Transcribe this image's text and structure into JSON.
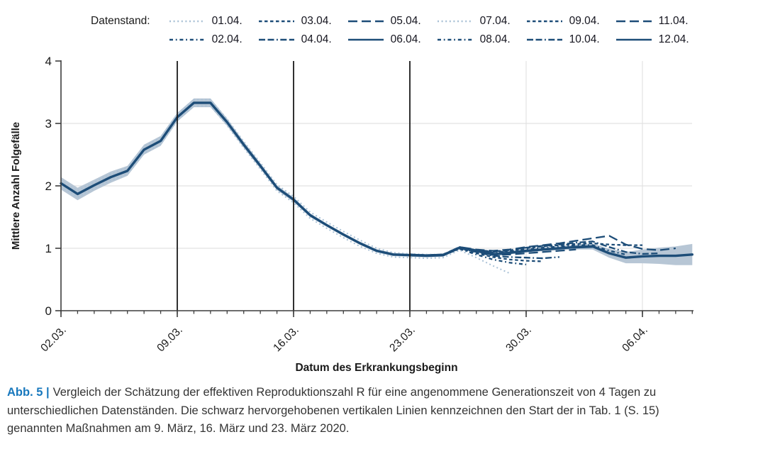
{
  "legend": {
    "title": "Datenstand:",
    "entries": [
      {
        "label": "01.04.",
        "dash": "dotted",
        "tone": "light"
      },
      {
        "label": "02.04.",
        "dash": "dashdot",
        "tone": "dark"
      },
      {
        "label": "03.04.",
        "dash": "shortdash",
        "tone": "dark"
      },
      {
        "label": "04.04.",
        "dash": "dashdashdot",
        "tone": "dark"
      },
      {
        "label": "05.04.",
        "dash": "longdash",
        "tone": "dark"
      },
      {
        "label": "06.04.",
        "dash": "solid",
        "tone": "dark"
      },
      {
        "label": "07.04.",
        "dash": "dotted",
        "tone": "light"
      },
      {
        "label": "08.04.",
        "dash": "dashdot",
        "tone": "dark"
      },
      {
        "label": "09.04.",
        "dash": "shortdash",
        "tone": "dark"
      },
      {
        "label": "10.04.",
        "dash": "dashdashdot",
        "tone": "dark"
      },
      {
        "label": "11.04.",
        "dash": "longdash",
        "tone": "dark"
      },
      {
        "label": "12.04.",
        "dash": "solid",
        "tone": "dark"
      }
    ]
  },
  "palette": {
    "line_dark": "#1d4d78",
    "line_light": "#a9c1d6",
    "band": "#b7c6d5",
    "grid": "#e2e2e2",
    "axis": "#3d3d3d",
    "vline": "#1a1a1a",
    "text": "#1a1a1a",
    "caption_accent": "#1878bd",
    "caption_text": "#343434"
  },
  "chart_data": {
    "type": "line",
    "title": "",
    "xlabel": "Datum des Erkrankungsbeginn",
    "ylabel": "Mittlere Anzahl Folgefälle",
    "ylim": [
      0,
      4
    ],
    "y_ticks": [
      0,
      1,
      2,
      3,
      4
    ],
    "x_dates": [
      "02.03.",
      "03.03.",
      "04.03.",
      "05.03.",
      "06.03.",
      "07.03.",
      "08.03.",
      "09.03.",
      "10.03.",
      "11.03.",
      "12.03.",
      "13.03.",
      "14.03.",
      "15.03.",
      "16.03.",
      "17.03.",
      "18.03.",
      "19.03.",
      "20.03.",
      "21.03.",
      "22.03.",
      "23.03.",
      "24.03.",
      "25.03.",
      "26.03.",
      "27.03.",
      "28.03.",
      "29.03.",
      "30.03.",
      "31.03.",
      "01.04.",
      "02.04.",
      "03.04.",
      "04.04.",
      "05.04.",
      "06.04.",
      "07.04.",
      "08.04.",
      "09.04."
    ],
    "x_tick_days": [
      0,
      7,
      14,
      21,
      28,
      35
    ],
    "x_tick_labels": [
      "02.03.",
      "09.03.",
      "16.03.",
      "23.03.",
      "30.03.",
      "06.04."
    ],
    "grid_vline_days": [
      7,
      14,
      21,
      28,
      35
    ],
    "highlight_vlines": {
      "days": [
        7,
        14,
        21
      ],
      "dates": [
        "09.03.",
        "16.03.",
        "23.03."
      ]
    },
    "main_series": {
      "name": "12.04.",
      "dash": "solid",
      "tone": "dark",
      "values": [
        2.04,
        1.87,
        2.01,
        2.14,
        2.24,
        2.58,
        2.72,
        3.1,
        3.33,
        3.33,
        3.02,
        2.66,
        2.32,
        1.97,
        1.78,
        1.53,
        1.37,
        1.22,
        1.08,
        0.96,
        0.9,
        0.89,
        0.88,
        0.89,
        1.01,
        0.96,
        0.9,
        0.93,
        0.96,
        0.98,
        1.0,
        1.02,
        1.03,
        0.92,
        0.85,
        0.87,
        0.88,
        0.88,
        0.9
      ],
      "band_halfwidth": [
        0.1,
        0.1,
        0.09,
        0.09,
        0.08,
        0.08,
        0.08,
        0.07,
        0.07,
        0.07,
        0.06,
        0.05,
        0.045,
        0.04,
        0.035,
        0.03,
        0.025,
        0.025,
        0.025,
        0.025,
        0.025,
        0.025,
        0.025,
        0.025,
        0.025,
        0.025,
        0.025,
        0.025,
        0.025,
        0.025,
        0.03,
        0.04,
        0.05,
        0.07,
        0.09,
        0.11,
        0.13,
        0.15,
        0.17
      ]
    },
    "series": [
      {
        "name": "01.04.",
        "dash": "dotted",
        "tone": "light",
        "points": [
          [
            0,
            1.99
          ],
          [
            1,
            1.82
          ],
          [
            2,
            1.96
          ],
          [
            3,
            2.09
          ],
          [
            4,
            2.19
          ],
          [
            5,
            2.53
          ],
          [
            6,
            2.67
          ],
          [
            7,
            3.05
          ],
          [
            8,
            3.28
          ],
          [
            9,
            3.28
          ],
          [
            10,
            2.97
          ],
          [
            11,
            2.61
          ],
          [
            12,
            2.27
          ],
          [
            13,
            1.92
          ],
          [
            14,
            1.73
          ],
          [
            15,
            1.48
          ],
          [
            16,
            1.32
          ],
          [
            17,
            1.17
          ],
          [
            18,
            1.03
          ],
          [
            19,
            0.92
          ],
          [
            20,
            0.86
          ],
          [
            21,
            0.85
          ],
          [
            22,
            0.84
          ],
          [
            23,
            0.85
          ],
          [
            24,
            0.97
          ],
          [
            25,
            0.85
          ],
          [
            26,
            0.72
          ],
          [
            27,
            0.6
          ]
        ]
      },
      {
        "name": "02.04.",
        "dash": "dashdot",
        "tone": "dark",
        "points": [
          [
            21,
            0.89
          ],
          [
            22,
            0.88
          ],
          [
            23,
            0.89
          ],
          [
            24,
            0.99
          ],
          [
            25,
            0.9
          ],
          [
            26,
            0.82
          ],
          [
            27,
            0.77
          ],
          [
            28,
            0.74
          ]
        ]
      },
      {
        "name": "03.04.",
        "dash": "shortdash",
        "tone": "dark",
        "points": [
          [
            21,
            0.89
          ],
          [
            22,
            0.88
          ],
          [
            23,
            0.89
          ],
          [
            24,
            1.0
          ],
          [
            25,
            0.92
          ],
          [
            26,
            0.86
          ],
          [
            27,
            0.82
          ],
          [
            28,
            0.8
          ],
          [
            29,
            0.79
          ]
        ]
      },
      {
        "name": "04.04.",
        "dash": "dashdashdot",
        "tone": "dark",
        "points": [
          [
            21,
            0.89
          ],
          [
            22,
            0.88
          ],
          [
            23,
            0.89
          ],
          [
            24,
            1.0
          ],
          [
            25,
            0.94
          ],
          [
            26,
            0.88
          ],
          [
            27,
            0.86
          ],
          [
            28,
            0.85
          ],
          [
            29,
            0.84
          ],
          [
            30,
            0.86
          ]
        ]
      },
      {
        "name": "05.04.",
        "dash": "longdash",
        "tone": "dark",
        "points": [
          [
            21,
            0.89
          ],
          [
            22,
            0.88
          ],
          [
            23,
            0.89
          ],
          [
            24,
            1.01
          ],
          [
            25,
            0.95
          ],
          [
            26,
            0.9
          ],
          [
            27,
            0.9
          ],
          [
            28,
            0.92
          ],
          [
            29,
            0.94
          ],
          [
            30,
            0.96
          ],
          [
            31,
            0.98
          ]
        ]
      },
      {
        "name": "06.04.",
        "dash": "solid",
        "tone": "dark",
        "points": [
          [
            21,
            0.89
          ],
          [
            22,
            0.88
          ],
          [
            23,
            0.89
          ],
          [
            24,
            1.01
          ],
          [
            25,
            0.96
          ],
          [
            26,
            0.91
          ],
          [
            27,
            0.92
          ],
          [
            28,
            0.95
          ],
          [
            29,
            0.98
          ],
          [
            30,
            1.0
          ],
          [
            31,
            1.01
          ],
          [
            32,
            1.02
          ]
        ]
      },
      {
        "name": "07.04.",
        "dash": "dotted",
        "tone": "light",
        "points": [
          [
            0,
            2.09
          ],
          [
            1,
            1.92
          ],
          [
            2,
            2.06
          ],
          [
            3,
            2.19
          ],
          [
            4,
            2.29
          ],
          [
            5,
            2.63
          ],
          [
            6,
            2.77
          ],
          [
            7,
            3.15
          ],
          [
            8,
            3.38
          ],
          [
            9,
            3.38
          ],
          [
            10,
            3.07
          ],
          [
            11,
            2.71
          ],
          [
            12,
            2.37
          ],
          [
            13,
            2.02
          ],
          [
            14,
            1.83
          ],
          [
            15,
            1.58
          ],
          [
            16,
            1.42
          ],
          [
            17,
            1.27
          ],
          [
            18,
            1.13
          ],
          [
            19,
            1.0
          ],
          [
            20,
            0.93
          ],
          [
            21,
            0.91
          ],
          [
            22,
            0.9
          ],
          [
            23,
            0.9
          ],
          [
            24,
            1.0
          ],
          [
            25,
            0.95
          ],
          [
            26,
            0.92
          ],
          [
            27,
            0.94
          ],
          [
            28,
            0.97
          ],
          [
            29,
            1.0
          ],
          [
            30,
            1.02
          ],
          [
            31,
            1.03
          ],
          [
            32,
            1.02
          ],
          [
            33,
            0.97
          ]
        ]
      },
      {
        "name": "08.04.",
        "dash": "dashdot",
        "tone": "dark",
        "points": [
          [
            21,
            0.9
          ],
          [
            22,
            0.89
          ],
          [
            23,
            0.9
          ],
          [
            24,
            1.0
          ],
          [
            25,
            0.96
          ],
          [
            26,
            0.93
          ],
          [
            27,
            0.95
          ],
          [
            28,
            0.98
          ],
          [
            29,
            1.01
          ],
          [
            30,
            1.03
          ],
          [
            31,
            1.05
          ],
          [
            32,
            1.05
          ],
          [
            33,
            0.96
          ],
          [
            34,
            0.9
          ]
        ]
      },
      {
        "name": "09.04.",
        "dash": "shortdash",
        "tone": "dark",
        "points": [
          [
            21,
            0.9
          ],
          [
            22,
            0.89
          ],
          [
            23,
            0.9
          ],
          [
            24,
            1.02
          ],
          [
            25,
            0.97
          ],
          [
            26,
            0.94
          ],
          [
            27,
            0.96
          ],
          [
            28,
            1.0
          ],
          [
            29,
            1.03
          ],
          [
            30,
            1.05
          ],
          [
            31,
            1.07
          ],
          [
            32,
            1.08
          ],
          [
            33,
            1.06
          ],
          [
            34,
            1.05
          ],
          [
            35,
            1.05
          ]
        ]
      },
      {
        "name": "10.04.",
        "dash": "dashdashdot",
        "tone": "dark",
        "points": [
          [
            21,
            0.9
          ],
          [
            22,
            0.89
          ],
          [
            23,
            0.9
          ],
          [
            24,
            1.01
          ],
          [
            25,
            0.97
          ],
          [
            26,
            0.95
          ],
          [
            27,
            0.97
          ],
          [
            28,
            1.01
          ],
          [
            29,
            1.04
          ],
          [
            30,
            1.06
          ],
          [
            31,
            1.09
          ],
          [
            32,
            1.11
          ],
          [
            33,
            1.02
          ],
          [
            34,
            0.94
          ],
          [
            35,
            0.91
          ],
          [
            36,
            0.92
          ]
        ]
      },
      {
        "name": "11.04.",
        "dash": "longdash",
        "tone": "dark",
        "points": [
          [
            21,
            0.9
          ],
          [
            22,
            0.89
          ],
          [
            23,
            0.9
          ],
          [
            24,
            1.02
          ],
          [
            25,
            0.98
          ],
          [
            26,
            0.96
          ],
          [
            27,
            0.98
          ],
          [
            28,
            1.02
          ],
          [
            29,
            1.05
          ],
          [
            30,
            1.08
          ],
          [
            31,
            1.12
          ],
          [
            32,
            1.16
          ],
          [
            33,
            1.2
          ],
          [
            34,
            1.06
          ],
          [
            35,
            0.99
          ],
          [
            36,
            0.97
          ],
          [
            37,
            1.0
          ]
        ]
      }
    ]
  },
  "caption": {
    "prefix": "Abb. 5 |",
    "line1": "Vergleich der Schätzung der effektiven Reproduktionszahl R für eine angenommene Generationszeit von 4 Tagen zu",
    "line2": "unterschiedlichen Datenständen. Die schwarz hervorgehobenen vertikalen Linien kennzeichnen den Start der in Tab. 1 (S. 15)",
    "line3": "genannten Maßnahmen am 9. März, 16. März und 23. März 2020."
  }
}
